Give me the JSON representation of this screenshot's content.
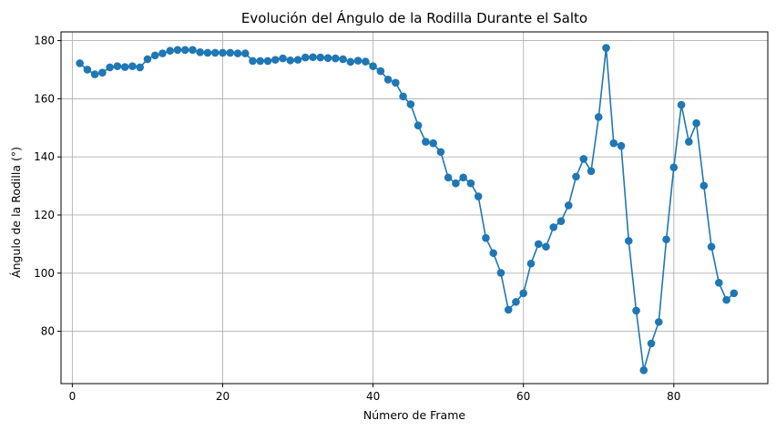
{
  "chart_data": {
    "type": "line",
    "title": "Evolución del Ángulo de la Rodilla Durante el Salto",
    "xlabel": "Número de Frame",
    "ylabel": "Ángulo de la Rodilla (°)",
    "xlim": [
      -1.5,
      92.5
    ],
    "ylim": [
      62,
      183
    ],
    "xticks": [
      0,
      20,
      40,
      60,
      80
    ],
    "yticks": [
      80,
      100,
      120,
      140,
      160,
      180
    ],
    "grid": true,
    "marker": "circle",
    "color": "#1f77b4",
    "series": [
      {
        "x": [
          1,
          2,
          3,
          4,
          5,
          6,
          7,
          8,
          9,
          10,
          11,
          12,
          13,
          14,
          15,
          16,
          17,
          18,
          19,
          20,
          21,
          22,
          23,
          24,
          25,
          26,
          27,
          28,
          29,
          30,
          31,
          32,
          33,
          34,
          35,
          36,
          37,
          38,
          39,
          40,
          41,
          42,
          43,
          44,
          45,
          46,
          47,
          48,
          49,
          50,
          51,
          52,
          53,
          54,
          55,
          56,
          57,
          58,
          59,
          60,
          61,
          62,
          63,
          64,
          65,
          66,
          67,
          68,
          69,
          70,
          71,
          72,
          73,
          74,
          75,
          76,
          77,
          78,
          79,
          80,
          81,
          82,
          83,
          84,
          85,
          86,
          87,
          88
        ],
        "values": [
          172.2,
          170,
          168.4,
          169,
          170.8,
          171.2,
          170.9,
          171.2,
          170.8,
          173.6,
          174.9,
          175.6,
          176.5,
          176.8,
          176.8,
          176.8,
          176,
          175.8,
          175.8,
          175.8,
          175.8,
          175.6,
          175.6,
          173,
          173,
          173,
          173.4,
          173.9,
          173.2,
          173.4,
          174.2,
          174.3,
          174.2,
          174,
          173.9,
          173.6,
          172.7,
          173.1,
          172.8,
          171.2,
          169.5,
          166.6,
          165.5,
          160.8,
          158.1,
          150.8,
          145.2,
          144.7,
          141.7,
          132.9,
          130.9,
          132.9,
          130.9,
          126.4,
          112.1,
          106.9,
          100.1,
          87.4,
          90.1,
          93.1,
          103.3,
          110,
          109.1,
          115.8,
          117.9,
          123.3,
          133.2,
          139.3,
          135.1,
          153.7,
          177.5,
          144.7,
          143.8,
          111.1,
          87.1,
          66.6,
          75.8,
          83.2,
          111.6,
          136.4,
          157.9,
          145.2,
          151.6,
          130.1,
          109.1,
          96.7,
          90.8,
          93.1
        ]
      }
    ]
  }
}
